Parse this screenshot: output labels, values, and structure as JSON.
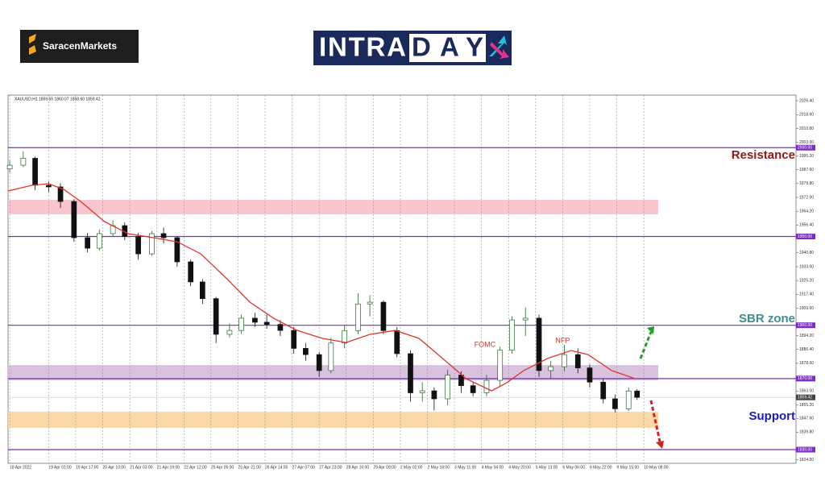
{
  "header": {
    "brand": "SaracenMarkets",
    "title_part1": "INTRA",
    "title_part2": "DAY"
  },
  "chart_data": {
    "type": "candlestick",
    "symbol_info": "XAUUSD,H1  1859.55 1860.07 1858.60 1859.42",
    "up_color": "#1f6b2a",
    "down_color": "#111111",
    "xlim": [
      -1,
      465
    ],
    "ylim": [
      1822.3,
      2029.6
    ],
    "xticks": [
      {
        "value": 0,
        "label": "18 Apr 2022"
      },
      {
        "value": 23,
        "label": "19 Apr 01:00"
      },
      {
        "value": 39,
        "label": "19 Apr 17:00"
      },
      {
        "value": 55,
        "label": "20 Apr 10:00"
      },
      {
        "value": 71,
        "label": "21 Apr 03:00"
      },
      {
        "value": 87,
        "label": "21 Apr 19:00"
      },
      {
        "value": 103,
        "label": "22 Apr 12:00"
      },
      {
        "value": 119,
        "label": "25 Apr 05:00"
      },
      {
        "value": 135,
        "label": "25 Apr 21:00"
      },
      {
        "value": 151,
        "label": "26 Apr 14:00"
      },
      {
        "value": 167,
        "label": "27 Apr 07:00"
      },
      {
        "value": 183,
        "label": "27 Apr 23:00"
      },
      {
        "value": 199,
        "label": "28 Apr 16:00"
      },
      {
        "value": 215,
        "label": "29 Apr 09:00"
      },
      {
        "value": 231,
        "label": "2 May 02:00"
      },
      {
        "value": 247,
        "label": "2 May 18:00"
      },
      {
        "value": 263,
        "label": "3 May 11:00"
      },
      {
        "value": 279,
        "label": "4 May 04:00"
      },
      {
        "value": 295,
        "label": "4 May 20:00"
      },
      {
        "value": 311,
        "label": "5 May 13:00"
      },
      {
        "value": 327,
        "label": "6 May 06:00"
      },
      {
        "value": 343,
        "label": "6 May 22:00"
      },
      {
        "value": 359,
        "label": "9 May 15:00"
      },
      {
        "value": 375,
        "label": "10 May 08:00"
      }
    ],
    "yticks": [
      {
        "value": 2026.4,
        "label": "2026.40"
      },
      {
        "value": 2018.6,
        "label": "2018.60"
      },
      {
        "value": 2010.8,
        "label": "2010.80"
      },
      {
        "value": 2003,
        "label": "2003.00"
      },
      {
        "value": 1995.2,
        "label": "1995.20"
      },
      {
        "value": 1987.6,
        "label": "1987.60"
      },
      {
        "value": 1979.8,
        "label": "1979.80"
      },
      {
        "value": 1972,
        "label": "1972.00"
      },
      {
        "value": 1964.2,
        "label": "1964.20"
      },
      {
        "value": 1956.4,
        "label": "1956.40"
      },
      {
        "value": 1940.8,
        "label": "1940.80"
      },
      {
        "value": 1933,
        "label": "1933.00"
      },
      {
        "value": 1925.2,
        "label": "1925.20"
      },
      {
        "value": 1917.4,
        "label": "1917.40"
      },
      {
        "value": 1909.6,
        "label": "1909.60"
      },
      {
        "value": 1894.2,
        "label": "1894.20"
      },
      {
        "value": 1886.4,
        "label": "1886.40"
      },
      {
        "value": 1878.6,
        "label": "1878.60"
      },
      {
        "value": 1863,
        "label": "1863.00"
      },
      {
        "value": 1855.2,
        "label": "1855.20"
      },
      {
        "value": 1847.6,
        "label": "1847.60"
      },
      {
        "value": 1839.8,
        "label": "1839.80"
      },
      {
        "value": 1824.2,
        "label": "1824.20"
      }
    ],
    "x": [
      0,
      8,
      15,
      23,
      30,
      38,
      46,
      53,
      61,
      68,
      76,
      84,
      91,
      99,
      107,
      114,
      122,
      130,
      137,
      145,
      152,
      160,
      168,
      175,
      183,
      190,
      198,
      206,
      213,
      221,
      229,
      237,
      244,
      251,
      259,
      267,
      274,
      282,
      290,
      297,
      305,
      313,
      320,
      328,
      336,
      343,
      351,
      358,
      366,
      371
    ],
    "open": [
      1988,
      1990.1,
      1994,
      1978.8,
      1977.9,
      1969.7,
      1949.3,
      1943.4,
      1951.6,
      1956.1,
      1950,
      1940.2,
      1951.6,
      1949.3,
      1935.7,
      1924.4,
      1915,
      1894.9,
      1897.1,
      1904,
      1901.7,
      1900.5,
      1897.1,
      1887,
      1883.5,
      1874.5,
      1890,
      1897,
      1912,
      1913,
      1897,
      1884,
      1862,
      1863.1,
      1858.6,
      1872,
      1866,
      1862,
      1869,
      1886,
      1903,
      1904,
      1874.5,
      1876.7,
      1883.5,
      1876,
      1868,
      1858.6,
      1853,
      1863
    ],
    "high": [
      1993,
      1998,
      1995,
      1981,
      1980,
      1971,
      1952,
      1954,
      1959,
      1958,
      1952,
      1953,
      1955,
      1950,
      1937,
      1926,
      1916,
      1901,
      1906,
      1907,
      1906,
      1903,
      1899,
      1890,
      1885,
      1893,
      1900,
      1918,
      1917,
      1914,
      1899,
      1886,
      1868,
      1865,
      1875,
      1874,
      1868,
      1872,
      1888,
      1905,
      1910,
      1906,
      1880,
      1889,
      1887,
      1878,
      1870,
      1861,
      1865,
      1864
    ],
    "low": [
      1986,
      1989,
      1976,
      1975,
      1966,
      1947,
      1941,
      1942,
      1950,
      1948,
      1937,
      1939,
      1946,
      1933,
      1922,
      1912,
      1890,
      1893,
      1895,
      1899,
      1898,
      1894,
      1884,
      1880,
      1871,
      1873,
      1887,
      1895,
      1905,
      1895,
      1882,
      1857,
      1857,
      1852,
      1855,
      1862,
      1860,
      1860,
      1866,
      1884,
      1894,
      1871,
      1870,
      1874,
      1873,
      1865,
      1856,
      1851,
      1852,
      1858
    ],
    "close": [
      1990.1,
      1994,
      1978.8,
      1977.9,
      1969.7,
      1949.3,
      1943.4,
      1951.6,
      1956.1,
      1950,
      1940.2,
      1951.6,
      1949.3,
      1935.7,
      1924.4,
      1915,
      1894.9,
      1897.1,
      1904,
      1901.7,
      1900.5,
      1897.1,
      1887,
      1883.5,
      1874.5,
      1890,
      1897,
      1912,
      1913,
      1897,
      1884,
      1862,
      1863.1,
      1858.6,
      1872,
      1866,
      1862,
      1869,
      1886,
      1903,
      1904,
      1874.5,
      1876.7,
      1883.5,
      1876,
      1868,
      1858.6,
      1853,
      1863,
      1859.42
    ],
    "moving_average": {
      "color": "#e0352b",
      "x": [
        -1,
        13,
        23,
        32,
        42,
        56,
        70,
        85,
        99,
        113,
        128,
        142,
        156,
        170,
        185,
        199,
        213,
        228,
        242,
        256,
        270,
        285,
        294,
        304,
        318,
        332,
        342,
        356,
        370
      ],
      "values": [
        1975.6,
        1978.8,
        1979.7,
        1976.5,
        1969.7,
        1958.4,
        1951.6,
        1949.3,
        1947,
        1940.2,
        1926.6,
        1913,
        1904,
        1897.1,
        1892.6,
        1890.3,
        1894.9,
        1897.1,
        1892.6,
        1881.3,
        1869.9,
        1863.1,
        1867.7,
        1874.5,
        1881.3,
        1885.8,
        1883.5,
        1874.5,
        1869.9
      ]
    },
    "level_color": "#7b2fbe",
    "levels": [
      {
        "value": 2000,
        "label": "2000.00"
      },
      {
        "value": 1950,
        "label": "1950.00"
      },
      {
        "value": 1900,
        "label": "1900.00"
      },
      {
        "value": 1870,
        "label": "1870.00"
      },
      {
        "value": 1830,
        "label": "1830.00"
      }
    ],
    "current_price": {
      "value": 1859.42,
      "label": "1859.42"
    },
    "zones": [
      {
        "from": 1962.5,
        "to": 1970.6,
        "color": "#f9c5cf"
      },
      {
        "from": 1869,
        "to": 1877.6,
        "color": "#d9c2df"
      },
      {
        "from": 1842.3,
        "to": 1851.3,
        "color": "#fbd8a8"
      }
    ],
    "annotations": [
      {
        "text": "Resistance",
        "y": 1995.5,
        "color": "#8b1a1a",
        "size": 15
      },
      {
        "text": "SBR zone",
        "y": 1903.5,
        "color": "#3f8f8c",
        "size": 15
      },
      {
        "text": "Support",
        "y": 1848.5,
        "color": "#1a1acc",
        "size": 15
      }
    ],
    "events": [
      {
        "text": "FOMC",
        "x": 281,
        "y": 1889
      },
      {
        "text": "NFP",
        "x": 327,
        "y": 1891.3
      }
    ]
  }
}
